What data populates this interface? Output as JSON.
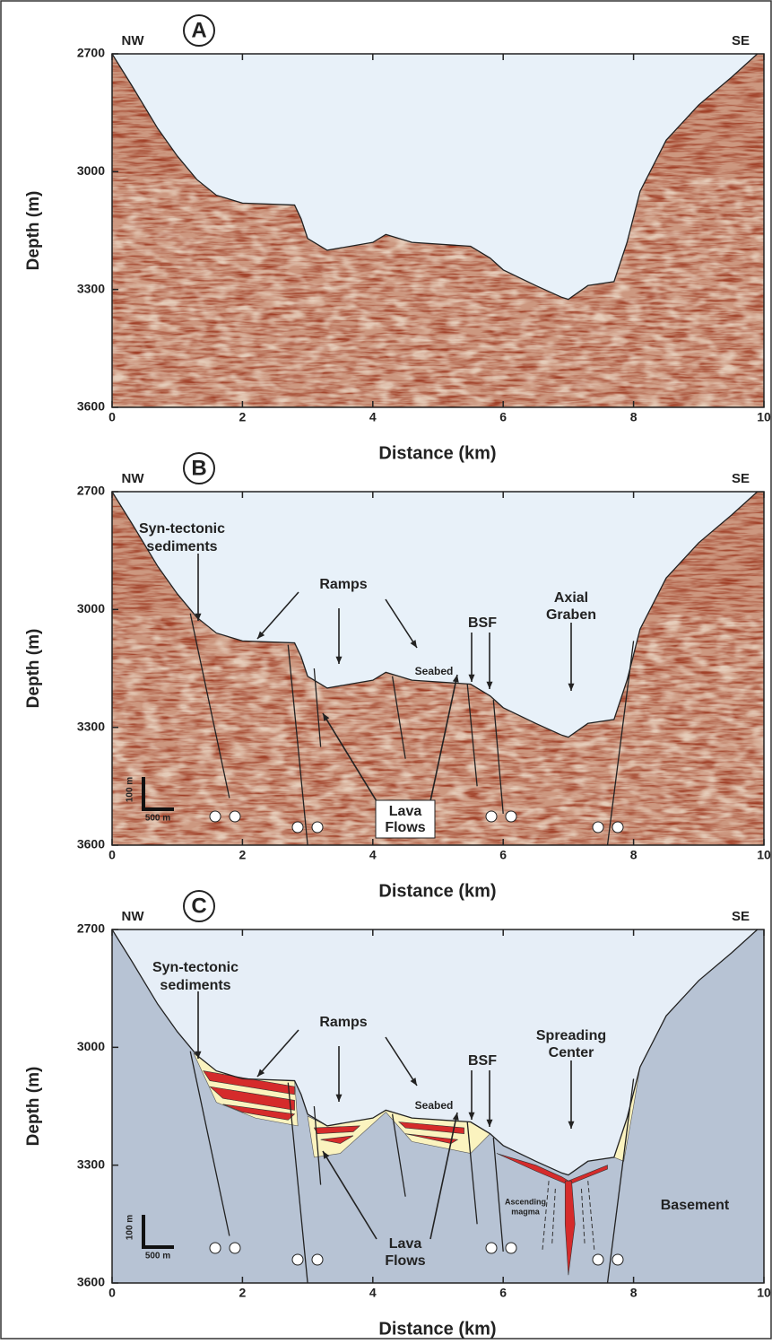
{
  "chart_data": [
    {
      "type": "seismic",
      "panel_label": "A",
      "left_label": "NW",
      "right_label": "SE",
      "x_label": "Distance (km)",
      "y_label": "Depth (m)",
      "xlim": [
        0,
        10
      ],
      "xticks": [
        0,
        2,
        4,
        6,
        8,
        10
      ],
      "ylim": [
        2700,
        3600
      ],
      "yticks": [
        2700,
        3000,
        3300,
        3600
      ],
      "y_inverted": true,
      "water_color": "#e8f1f9",
      "rock_color": "#a8442a",
      "x": [
        0,
        0.3,
        0.7,
        1.0,
        1.3,
        1.6,
        2.0,
        2.8,
        2.9,
        3.0,
        3.3,
        4.0,
        4.2,
        4.6,
        5.5,
        5.8,
        6.0,
        6.5,
        6.9,
        7.0,
        7.3,
        7.7,
        7.9,
        8.1,
        8.5,
        9.0,
        9.5,
        9.9
      ],
      "values": [
        2700,
        2780,
        2890,
        2960,
        3020,
        3060,
        3080,
        3085,
        3120,
        3170,
        3200,
        3180,
        3160,
        3180,
        3190,
        3220,
        3250,
        3290,
        3320,
        3325,
        3290,
        3280,
        3180,
        3050,
        2920,
        2830,
        2760,
        2700
      ],
      "annotations": []
    },
    {
      "type": "seismic",
      "panel_label": "B",
      "left_label": "NW",
      "right_label": "SE",
      "x_label": "Distance (km)",
      "y_label": "Depth (m)",
      "xlim": [
        0,
        10
      ],
      "xticks": [
        0,
        2,
        4,
        6,
        8,
        10
      ],
      "ylim": [
        2700,
        3600
      ],
      "yticks": [
        2700,
        3000,
        3300,
        3600
      ],
      "y_inverted": true,
      "water_color": "#e8f1f9",
      "rock_color": "#a8442a",
      "x": [
        0,
        0.3,
        0.7,
        1.0,
        1.3,
        1.6,
        2.0,
        2.8,
        2.9,
        3.0,
        3.3,
        4.0,
        4.2,
        4.6,
        5.5,
        5.8,
        6.0,
        6.5,
        6.9,
        7.0,
        7.3,
        7.7,
        7.9,
        8.1,
        8.5,
        9.0,
        9.5,
        9.9
      ],
      "values": [
        2700,
        2780,
        2890,
        2960,
        3020,
        3060,
        3080,
        3085,
        3120,
        3170,
        3200,
        3180,
        3160,
        3180,
        3190,
        3220,
        3250,
        3290,
        3320,
        3325,
        3290,
        3280,
        3180,
        3050,
        2920,
        2830,
        2760,
        2700
      ],
      "annotations": [
        "Syn-tectonic",
        "sediments",
        "Ramps",
        "BSF",
        "Axial",
        "Graben",
        "Seabed",
        "Lava",
        "Flows",
        "100 m",
        "500 m"
      ]
    },
    {
      "type": "interpretation",
      "panel_label": "C",
      "left_label": "NW",
      "right_label": "SE",
      "x_label": "Distance (km)",
      "y_label": "Depth (m)",
      "xlim": [
        0,
        10
      ],
      "xticks": [
        0,
        2,
        4,
        6,
        8,
        10
      ],
      "ylim": [
        2700,
        3600
      ],
      "yticks": [
        2700,
        3000,
        3300,
        3600
      ],
      "y_inverted": true,
      "water_color": "#e6eef7",
      "rock_color": "#b7c3d4",
      "x": [
        0,
        0.3,
        0.7,
        1.0,
        1.3,
        1.6,
        2.0,
        2.8,
        2.9,
        3.0,
        3.3,
        4.0,
        4.2,
        4.6,
        5.5,
        5.8,
        6.0,
        6.5,
        6.9,
        7.0,
        7.3,
        7.7,
        7.9,
        8.1,
        8.5,
        9.0,
        9.5,
        9.9
      ],
      "values": [
        2700,
        2780,
        2890,
        2960,
        3020,
        3060,
        3080,
        3085,
        3120,
        3170,
        3200,
        3180,
        3160,
        3180,
        3190,
        3220,
        3250,
        3290,
        3320,
        3325,
        3290,
        3280,
        3180,
        3050,
        2920,
        2830,
        2760,
        2700
      ],
      "annotations": [
        "Syn-tectonic",
        "sediments",
        "Ramps",
        "BSF",
        "Spreading",
        "Center",
        "Seabed",
        "Ascending",
        "magma",
        "Basement",
        "Lava",
        "Flows",
        "100 m",
        "500 m"
      ]
    }
  ]
}
